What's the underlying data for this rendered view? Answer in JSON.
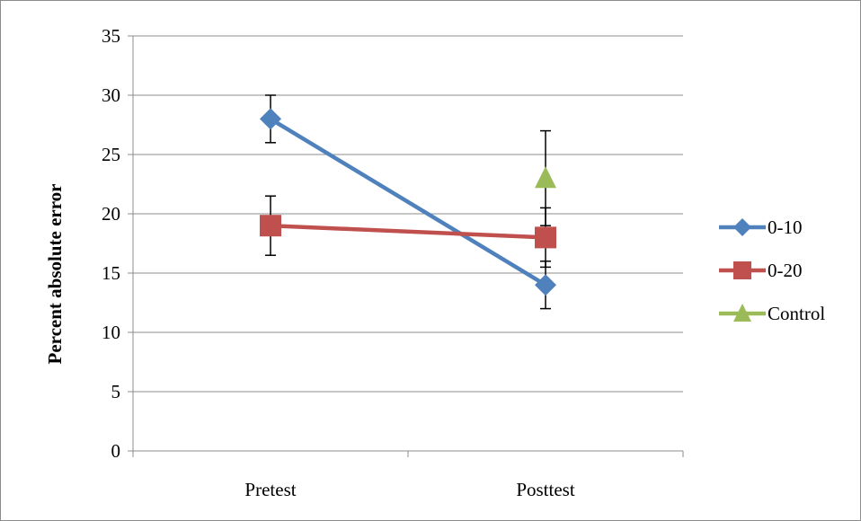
{
  "chart_data": {
    "type": "line",
    "title": "",
    "xlabel": "",
    "ylabel": "Percent absolute error",
    "categories": [
      "Pretest",
      "Posttest"
    ],
    "ylim": [
      0,
      35
    ],
    "yticks": [
      0,
      5,
      10,
      15,
      20,
      25,
      30,
      35
    ],
    "grid": true,
    "legend_position": "right",
    "series": [
      {
        "name": "0-10",
        "color": "#4f81bd",
        "marker": "diamond",
        "values": [
          28,
          14
        ],
        "error": [
          2,
          2
        ]
      },
      {
        "name": "0-20",
        "color": "#c0504d",
        "marker": "square",
        "values": [
          19,
          18
        ],
        "error": [
          2.5,
          2.5
        ]
      },
      {
        "name": "Control",
        "color": "#9bbb59",
        "marker": "triangle",
        "values": [
          null,
          23
        ],
        "error": [
          null,
          4
        ]
      }
    ]
  }
}
